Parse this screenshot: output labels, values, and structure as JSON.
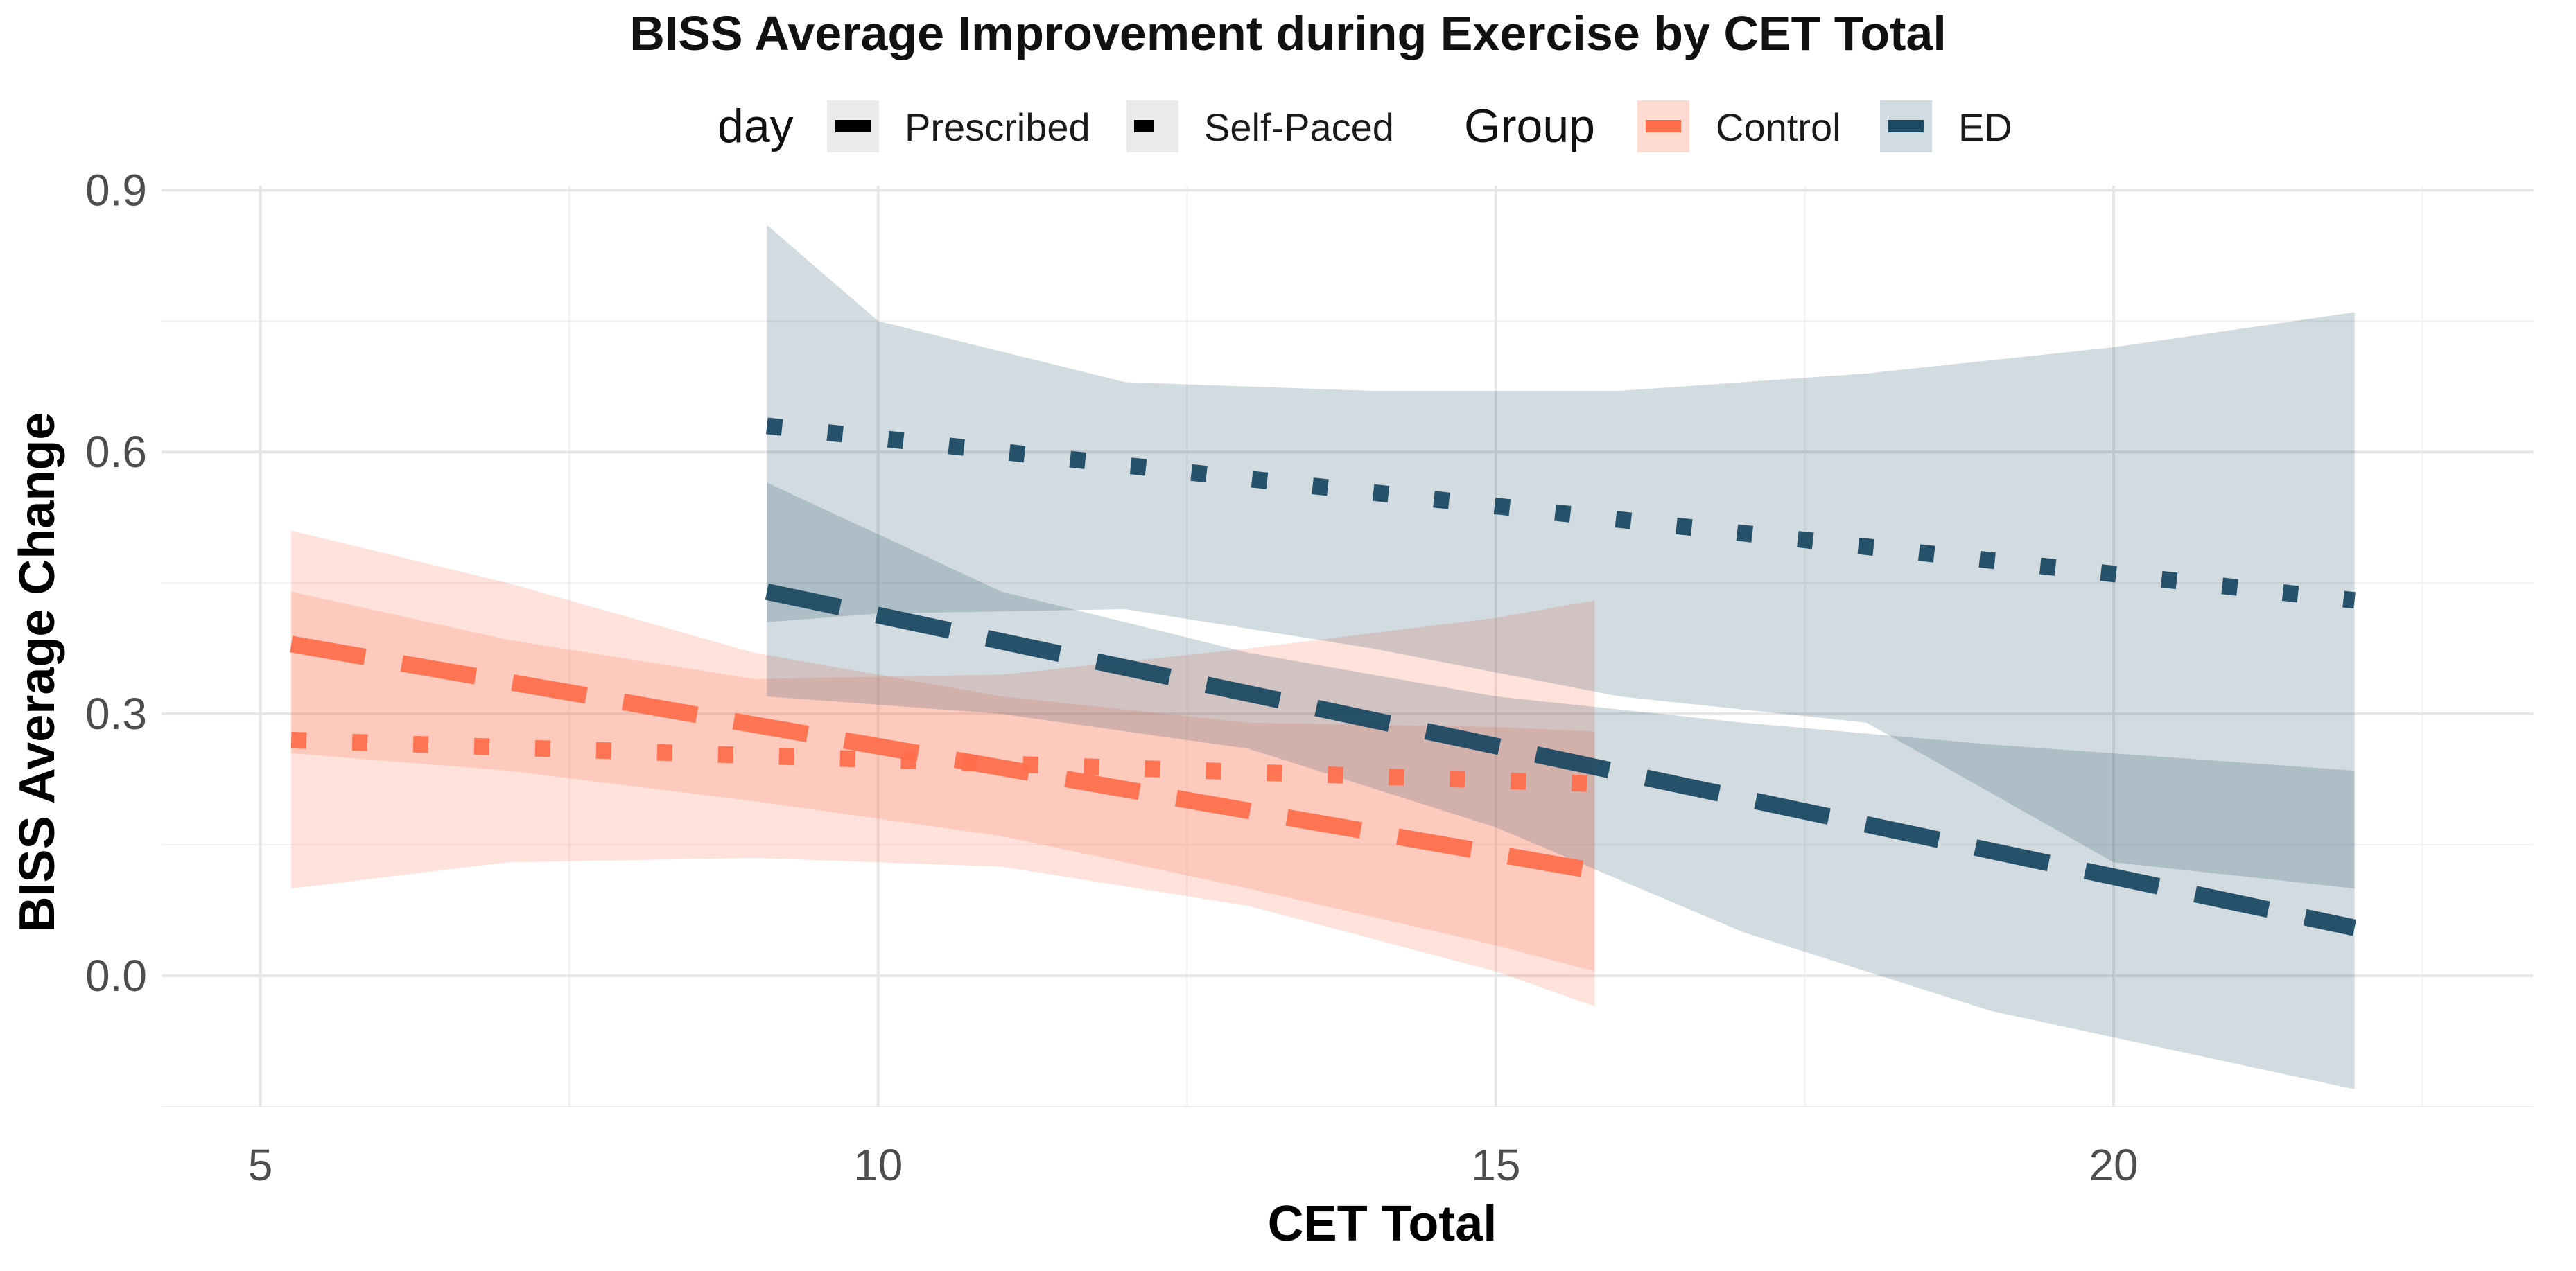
{
  "chart_data": {
    "type": "line",
    "title": "BISS Average Improvement during Exercise by CET Total",
    "xlabel": "CET Total",
    "ylabel": "BISS Average Change",
    "xlim": [
      4.2,
      23.4
    ],
    "ylim": [
      -0.15,
      0.905
    ],
    "x_ticks": [
      5,
      10,
      15,
      20
    ],
    "x_tick_labels": [
      "5",
      "10",
      "15",
      "20"
    ],
    "y_ticks": [
      0.0,
      0.3,
      0.6,
      0.9
    ],
    "y_tick_labels": [
      "0.0",
      "0.3",
      "0.6",
      "0.9"
    ],
    "grid": true,
    "legend": {
      "placement": "top",
      "day_title": "day",
      "day_items": [
        {
          "label": "Prescribed",
          "linetype": "dashed"
        },
        {
          "label": "Self-Paced",
          "linetype": "dotted"
        }
      ],
      "group_title": "Group",
      "group_items": [
        {
          "label": "Control",
          "color": "#FF6F4D"
        },
        {
          "label": "ED",
          "color": "#1C4A63"
        }
      ]
    },
    "series": [
      {
        "group": "Control",
        "day": "Prescribed",
        "color": "#FF6F4D",
        "linetype": "dashed",
        "x": [
          5.25,
          15.8
        ],
        "y": [
          0.38,
          0.12
        ],
        "band": {
          "x": [
            5.25,
            7,
            9,
            11,
            13,
            15,
            15.8
          ],
          "lower": [
            0.1,
            0.13,
            0.135,
            0.125,
            0.08,
            0.005,
            -0.035
          ],
          "upper": [
            0.51,
            0.45,
            0.37,
            0.32,
            0.29,
            0.285,
            0.28
          ]
        }
      },
      {
        "group": "Control",
        "day": "Self-Paced",
        "color": "#FF6F4D",
        "linetype": "dotted",
        "x": [
          5.25,
          15.8
        ],
        "y": [
          0.27,
          0.22
        ],
        "band": {
          "x": [
            5.25,
            7,
            9,
            11,
            13,
            15,
            15.8
          ],
          "lower": [
            0.255,
            0.235,
            0.2,
            0.16,
            0.1,
            0.035,
            0.005
          ],
          "upper": [
            0.44,
            0.385,
            0.34,
            0.345,
            0.375,
            0.41,
            0.43
          ]
        }
      },
      {
        "group": "ED",
        "day": "Prescribed",
        "color": "#1C4A63",
        "linetype": "dashed",
        "x": [
          9.1,
          21.95
        ],
        "y": [
          0.44,
          0.055
        ],
        "band": {
          "x": [
            9.1,
            11,
            13,
            15,
            17,
            19,
            21.95
          ],
          "lower": [
            0.32,
            0.3,
            0.26,
            0.17,
            0.05,
            -0.04,
            -0.13
          ],
          "upper": [
            0.565,
            0.44,
            0.37,
            0.32,
            0.29,
            0.265,
            0.235
          ]
        }
      },
      {
        "group": "ED",
        "day": "Self-Paced",
        "color": "#1C4A63",
        "linetype": "dotted",
        "x": [
          9.1,
          21.95
        ],
        "y": [
          0.63,
          0.43
        ],
        "band": {
          "x": [
            9.1,
            10,
            12,
            14,
            16,
            18,
            20,
            21.95
          ],
          "lower": [
            0.405,
            0.415,
            0.42,
            0.375,
            0.32,
            0.29,
            0.13,
            0.1
          ],
          "upper": [
            0.86,
            0.75,
            0.68,
            0.67,
            0.67,
            0.69,
            0.72,
            0.76
          ]
        }
      }
    ]
  }
}
